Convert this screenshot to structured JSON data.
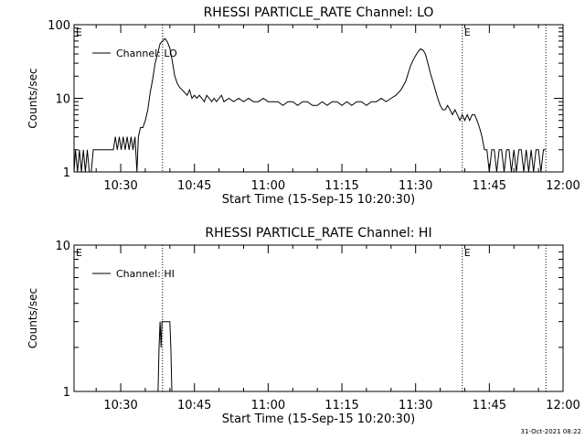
{
  "chart_data": [
    {
      "type": "line",
      "title": "RHESSI PARTICLE_RATE Channel: LO",
      "xlabel": "Start Time (15-Sep-15 10:20:30)",
      "ylabel": "Counts/sec",
      "y_scale": "log",
      "ylim": [
        1,
        100
      ],
      "y_ticks": [
        {
          "value": 1,
          "label": "1"
        },
        {
          "value": 10,
          "label": "10"
        },
        {
          "value": 100,
          "label": "100"
        }
      ],
      "xlim_minutes": [
        20.5,
        120
      ],
      "x_ticks": [
        {
          "minute": 30,
          "label": "10:30"
        },
        {
          "minute": 45,
          "label": "10:45"
        },
        {
          "minute": 60,
          "label": "11:00"
        },
        {
          "minute": 75,
          "label": "11:15"
        },
        {
          "minute": 90,
          "label": "11:30"
        },
        {
          "minute": 105,
          "label": "11:45"
        },
        {
          "minute": 120,
          "label": "12:00"
        }
      ],
      "legend": {
        "placement": "top-left",
        "entries": [
          "Channel: LO"
        ]
      },
      "event_markers": [
        {
          "minute": 20.5,
          "label": "E"
        },
        {
          "minute": 38.5,
          "label": ""
        },
        {
          "minute": 99.5,
          "label": "E"
        },
        {
          "minute": 116.5,
          "label": ""
        }
      ],
      "series": [
        {
          "name": "Channel: LO",
          "points": [
            [
              20.5,
              1
            ],
            [
              20.8,
              2
            ],
            [
              21.2,
              1
            ],
            [
              21.6,
              2
            ],
            [
              22.0,
              1
            ],
            [
              22.4,
              2
            ],
            [
              22.8,
              1
            ],
            [
              23.2,
              2
            ],
            [
              23.6,
              1
            ],
            [
              24.0,
              1
            ],
            [
              24.4,
              2
            ],
            [
              25.0,
              2
            ],
            [
              26.0,
              2
            ],
            [
              27.0,
              2
            ],
            [
              28.0,
              2
            ],
            [
              28.5,
              2
            ],
            [
              28.9,
              3
            ],
            [
              29.3,
              2
            ],
            [
              29.7,
              3
            ],
            [
              30.1,
              2
            ],
            [
              30.5,
              3
            ],
            [
              30.9,
              2
            ],
            [
              31.3,
              3
            ],
            [
              31.7,
              2
            ],
            [
              32.1,
              3
            ],
            [
              32.5,
              2
            ],
            [
              32.9,
              3
            ],
            [
              33.3,
              1
            ],
            [
              33.6,
              3
            ],
            [
              34.0,
              4
            ],
            [
              34.5,
              4
            ],
            [
              35.0,
              5
            ],
            [
              35.5,
              7
            ],
            [
              36.0,
              12
            ],
            [
              36.5,
              18
            ],
            [
              37.0,
              30
            ],
            [
              37.5,
              40
            ],
            [
              38.0,
              55
            ],
            [
              38.5,
              60
            ],
            [
              39.0,
              65
            ],
            [
              39.5,
              58
            ],
            [
              40.0,
              48
            ],
            [
              40.5,
              32
            ],
            [
              41.0,
              20
            ],
            [
              41.5,
              16
            ],
            [
              42.0,
              14
            ],
            [
              42.5,
              13
            ],
            [
              43.0,
              12
            ],
            [
              43.5,
              11
            ],
            [
              44.0,
              13
            ],
            [
              44.5,
              10
            ],
            [
              45.0,
              11
            ],
            [
              45.5,
              10
            ],
            [
              46.0,
              11
            ],
            [
              46.5,
              10
            ],
            [
              47.0,
              9
            ],
            [
              47.5,
              11
            ],
            [
              48.0,
              10
            ],
            [
              48.5,
              9
            ],
            [
              49.0,
              10
            ],
            [
              49.5,
              9
            ],
            [
              50.0,
              10
            ],
            [
              50.5,
              11
            ],
            [
              51.0,
              9
            ],
            [
              52.0,
              10
            ],
            [
              53.0,
              9
            ],
            [
              54.0,
              10
            ],
            [
              55.0,
              9
            ],
            [
              56.0,
              10
            ],
            [
              57.0,
              9
            ],
            [
              58.0,
              9
            ],
            [
              59.0,
              10
            ],
            [
              60.0,
              9
            ],
            [
              61.0,
              9
            ],
            [
              62.0,
              9
            ],
            [
              63.0,
              8
            ],
            [
              64.0,
              9
            ],
            [
              65.0,
              9
            ],
            [
              66.0,
              8
            ],
            [
              67.0,
              9
            ],
            [
              68.0,
              9
            ],
            [
              69.0,
              8
            ],
            [
              70.0,
              8
            ],
            [
              71.0,
              9
            ],
            [
              72.0,
              8
            ],
            [
              73.0,
              9
            ],
            [
              74.0,
              9
            ],
            [
              75.0,
              8
            ],
            [
              76.0,
              9
            ],
            [
              77.0,
              8
            ],
            [
              78.0,
              9
            ],
            [
              79.0,
              9
            ],
            [
              80.0,
              8
            ],
            [
              81.0,
              9
            ],
            [
              82.0,
              9
            ],
            [
              83.0,
              10
            ],
            [
              84.0,
              9
            ],
            [
              85.0,
              10
            ],
            [
              86.0,
              11
            ],
            [
              87.0,
              13
            ],
            [
              88.0,
              17
            ],
            [
              88.5,
              22
            ],
            [
              89.0,
              28
            ],
            [
              89.5,
              33
            ],
            [
              90.0,
              38
            ],
            [
              90.5,
              43
            ],
            [
              91.0,
              47
            ],
            [
              91.5,
              45
            ],
            [
              92.0,
              40
            ],
            [
              92.5,
              30
            ],
            [
              93.0,
              22
            ],
            [
              93.5,
              17
            ],
            [
              94.0,
              13
            ],
            [
              94.5,
              10
            ],
            [
              95.0,
              8
            ],
            [
              95.5,
              7
            ],
            [
              96.0,
              7
            ],
            [
              96.5,
              8
            ],
            [
              97.0,
              7
            ],
            [
              97.5,
              6
            ],
            [
              98.0,
              7
            ],
            [
              98.5,
              6
            ],
            [
              99.0,
              5
            ],
            [
              99.5,
              6
            ],
            [
              100.0,
              5
            ],
            [
              100.5,
              6
            ],
            [
              101.0,
              5
            ],
            [
              101.5,
              6
            ],
            [
              102.0,
              6
            ],
            [
              102.5,
              5
            ],
            [
              103.0,
              4
            ],
            [
              103.5,
              3
            ],
            [
              104.0,
              2
            ],
            [
              104.5,
              2
            ],
            [
              105.0,
              1
            ],
            [
              105.5,
              2
            ],
            [
              106.0,
              2
            ],
            [
              106.5,
              1
            ],
            [
              107.0,
              2
            ],
            [
              107.5,
              2
            ],
            [
              108.0,
              1
            ],
            [
              108.5,
              2
            ],
            [
              109.0,
              2
            ],
            [
              109.5,
              1
            ],
            [
              110.0,
              2
            ],
            [
              110.5,
              1
            ],
            [
              111.0,
              2
            ],
            [
              111.5,
              2
            ],
            [
              112.0,
              1
            ],
            [
              112.5,
              2
            ],
            [
              113.0,
              1
            ],
            [
              113.5,
              2
            ],
            [
              114.0,
              1
            ],
            [
              114.5,
              2
            ],
            [
              115.0,
              2
            ],
            [
              115.5,
              1
            ],
            [
              116.0,
              2
            ],
            [
              116.5,
              2
            ]
          ]
        }
      ]
    },
    {
      "type": "line",
      "title": "RHESSI PARTICLE_RATE Channel: HI",
      "xlabel": "Start Time (15-Sep-15 10:20:30)",
      "ylabel": "Counts/sec",
      "y_scale": "log",
      "ylim": [
        1,
        10
      ],
      "y_ticks": [
        {
          "value": 1,
          "label": "1"
        },
        {
          "value": 10,
          "label": "10"
        }
      ],
      "xlim_minutes": [
        20.5,
        120
      ],
      "x_ticks": [
        {
          "minute": 30,
          "label": "10:30"
        },
        {
          "minute": 45,
          "label": "10:45"
        },
        {
          "minute": 60,
          "label": "11:00"
        },
        {
          "minute": 75,
          "label": "11:15"
        },
        {
          "minute": 90,
          "label": "11:30"
        },
        {
          "minute": 105,
          "label": "11:45"
        },
        {
          "minute": 120,
          "label": "12:00"
        }
      ],
      "legend": {
        "placement": "top-left",
        "entries": [
          "Channel: HI"
        ]
      },
      "event_markers": [
        {
          "minute": 20.5,
          "label": "E"
        },
        {
          "minute": 38.5,
          "label": ""
        },
        {
          "minute": 99.5,
          "label": "E"
        },
        {
          "minute": 116.5,
          "label": ""
        }
      ],
      "series": [
        {
          "name": "Channel: HI",
          "points": [
            [
              37.6,
              1
            ],
            [
              37.8,
              2
            ],
            [
              38.0,
              3
            ],
            [
              38.2,
              2
            ],
            [
              38.4,
              3
            ],
            [
              39.0,
              3
            ],
            [
              39.6,
              3
            ],
            [
              40.0,
              3
            ],
            [
              40.2,
              2
            ],
            [
              40.4,
              1
            ]
          ]
        }
      ]
    }
  ],
  "footer": {
    "timestamp": "31-Oct-2021 08:22"
  }
}
